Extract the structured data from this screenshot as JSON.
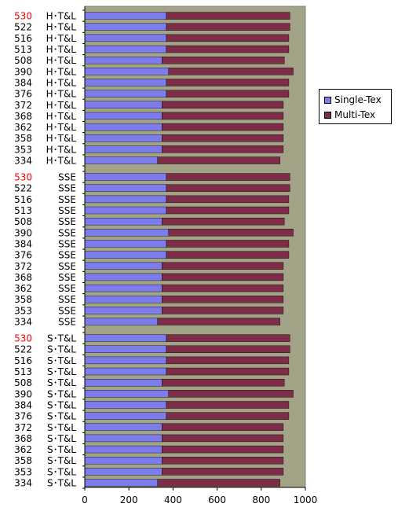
{
  "chart_data": {
    "type": "bar",
    "orientation": "horizontal",
    "stacked": true,
    "xlim": [
      0,
      1000
    ],
    "x_ticks": [
      0,
      200,
      400,
      600,
      800,
      1000
    ],
    "grid": false,
    "legend_position": "right",
    "colors": {
      "plot_bg": "#A3A387",
      "single": "#7C7CEC",
      "multi": "#7D2D47",
      "highlight_label": "#FF0000",
      "label": "#000000"
    },
    "groups": [
      {
        "name": "H*T&L",
        "categories": [
          "530",
          "522",
          "516",
          "513",
          "508",
          "390",
          "384",
          "376",
          "372",
          "368",
          "362",
          "358",
          "353",
          "334"
        ],
        "category_labels": [
          "H･T&L",
          "H･T&L",
          "H･T&L",
          "H･T&L",
          "H･T&L",
          "H･T&L",
          "H･T&L",
          "H･T&L",
          "H･T&L",
          "H･T&L",
          "H･T&L",
          "H･T&L",
          "H･T&L",
          "H･T&L"
        ],
        "series": [
          {
            "name": "Single-Tex",
            "values": [
              370,
              370,
              370,
              370,
              350,
              380,
              370,
              370,
              350,
              350,
              350,
              350,
              350,
              330
            ]
          },
          {
            "name": "Multi-Tex",
            "values": [
              560,
              560,
              555,
              555,
              555,
              565,
              555,
              555,
              550,
              550,
              550,
              550,
              550,
              555
            ]
          }
        ]
      },
      {
        "name": "SSE",
        "categories": [
          "530",
          "522",
          "516",
          "513",
          "508",
          "390",
          "384",
          "376",
          "372",
          "368",
          "362",
          "358",
          "353",
          "334"
        ],
        "category_labels": [
          "SSE",
          "SSE",
          "SSE",
          "SSE",
          "SSE",
          "SSE",
          "SSE",
          "SSE",
          "SSE",
          "SSE",
          "SSE",
          "SSE",
          "SSE",
          "SSE"
        ],
        "series": [
          {
            "name": "Single-Tex",
            "values": [
              370,
              370,
              370,
              370,
              350,
              380,
              370,
              370,
              350,
              350,
              350,
              350,
              350,
              330
            ]
          },
          {
            "name": "Multi-Tex",
            "values": [
              560,
              560,
              555,
              555,
              555,
              565,
              555,
              555,
              550,
              550,
              550,
              550,
              550,
              555
            ]
          }
        ]
      },
      {
        "name": "S*T&L",
        "categories": [
          "530",
          "522",
          "516",
          "513",
          "508",
          "390",
          "384",
          "376",
          "372",
          "368",
          "362",
          "358",
          "353",
          "334"
        ],
        "category_labels": [
          "S･T&L",
          "S･T&L",
          "S･T&L",
          "S･T&L",
          "S･T&L",
          "S･T&L",
          "S･T&L",
          "S･T&L",
          "S･T&L",
          "S･T&L",
          "S･T&L",
          "S･T&L",
          "S･T&L",
          "S･T&L"
        ],
        "series": [
          {
            "name": "Single-Tex",
            "values": [
              370,
              370,
              370,
              370,
              350,
              380,
              370,
              370,
              350,
              350,
              350,
              350,
              350,
              330
            ]
          },
          {
            "name": "Multi-Tex",
            "values": [
              560,
              560,
              555,
              555,
              555,
              565,
              555,
              555,
              550,
              550,
              550,
              550,
              550,
              555
            ]
          }
        ]
      }
    ],
    "highlight_category": "530"
  },
  "legend": {
    "items": [
      {
        "label": "Single-Tex",
        "color": "#7C7CEC"
      },
      {
        "label": "Multi-Tex",
        "color": "#7D2D47"
      }
    ]
  }
}
